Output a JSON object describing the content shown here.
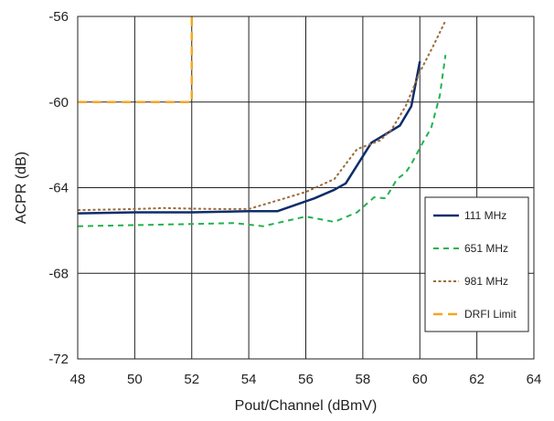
{
  "chart_data": {
    "type": "line",
    "title": "",
    "xlabel": "Pout/Channel (dBmV)",
    "ylabel": "ACPR (dB)",
    "xlim": [
      48,
      64
    ],
    "ylim": [
      -72,
      -56
    ],
    "xticks": [
      48,
      50,
      52,
      54,
      56,
      58,
      60,
      62,
      64
    ],
    "yticks": [
      -56,
      -60,
      -64,
      -68,
      -72
    ],
    "grid": true,
    "legend_position": "right",
    "series": [
      {
        "name": "111 MHz",
        "color": "#0d2d6b",
        "dash": "solid",
        "x": [
          48,
          50,
          52,
          54,
          55,
          56.3,
          57,
          57.4,
          58.3,
          58.8,
          59.3,
          59.7,
          60
        ],
        "y": [
          -65.2,
          -65.15,
          -65.15,
          -65.1,
          -65.1,
          -64.5,
          -64.1,
          -63.8,
          -61.9,
          -61.5,
          -61.1,
          -60.2,
          -58.1
        ]
      },
      {
        "name": "651 MHz",
        "color": "#21b24f",
        "dash": "dashed",
        "x": [
          48,
          50,
          52,
          53.5,
          54.5,
          56,
          57,
          57.8,
          58.4,
          58.8,
          59.2,
          59.5,
          59.7,
          60.1,
          60.4,
          60.7,
          60.9
        ],
        "y": [
          -65.8,
          -65.75,
          -65.7,
          -65.65,
          -65.8,
          -65.35,
          -65.6,
          -65.15,
          -64.45,
          -64.5,
          -63.6,
          -63.3,
          -62.9,
          -61.9,
          -61.2,
          -59.7,
          -57.8
        ]
      },
      {
        "name": "981 MHz",
        "color": "#9a6b3c",
        "dash": "dotted",
        "x": [
          48,
          50,
          51,
          52,
          53,
          54,
          55,
          56,
          57,
          57.8,
          58.6,
          59,
          59.5,
          60,
          60.5,
          60.9
        ],
        "y": [
          -65.05,
          -65,
          -64.95,
          -64.98,
          -65,
          -65,
          -64.6,
          -64.2,
          -63.6,
          -62.2,
          -61.8,
          -61.3,
          -60.2,
          -58.6,
          -57.3,
          -56.2
        ]
      },
      {
        "name": "DRFI Limit",
        "color": "#f5a623",
        "dash": "longdash",
        "x": [
          48,
          52,
          52
        ],
        "y": [
          -60,
          -60,
          -56
        ]
      }
    ]
  }
}
